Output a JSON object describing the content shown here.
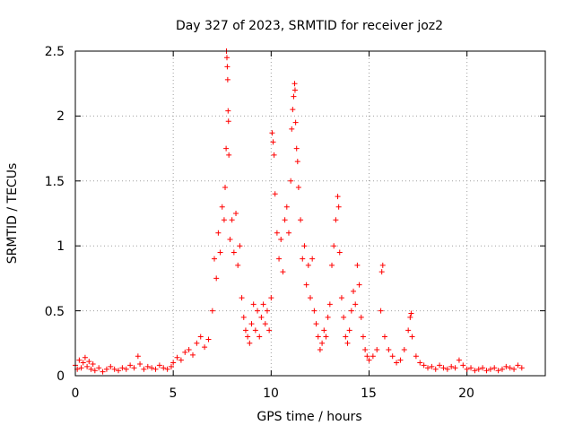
{
  "chart_data": {
    "type": "scatter",
    "title": "Day 327 of 2023, SRMTID for receiver joz2",
    "xlabel": "GPS time / hours",
    "ylabel": "SRMTID / TECUs",
    "xlim": [
      0,
      24
    ],
    "ylim": [
      0,
      2.5
    ],
    "x_ticks": [
      0,
      5,
      10,
      15,
      20
    ],
    "y_ticks": [
      0,
      0.5,
      1,
      1.5,
      2,
      2.5
    ],
    "x_tick_labels": [
      "0",
      "5",
      "10",
      "15",
      "20"
    ],
    "y_tick_labels": [
      "0",
      "0.5",
      "1",
      "1.5",
      "2",
      "2.5"
    ],
    "grid": true,
    "marker": "+",
    "series": [
      {
        "name": "SRMTID",
        "color": "#ff0000",
        "points": [
          [
            0.0,
            0.08
          ],
          [
            0.1,
            0.05
          ],
          [
            0.2,
            0.12
          ],
          [
            0.3,
            0.06
          ],
          [
            0.4,
            0.1
          ],
          [
            0.5,
            0.14
          ],
          [
            0.6,
            0.07
          ],
          [
            0.7,
            0.11
          ],
          [
            0.8,
            0.05
          ],
          [
            0.9,
            0.09
          ],
          [
            1.0,
            0.04
          ],
          [
            1.2,
            0.06
          ],
          [
            1.4,
            0.03
          ],
          [
            1.6,
            0.05
          ],
          [
            1.8,
            0.07
          ],
          [
            2.0,
            0.05
          ],
          [
            2.2,
            0.04
          ],
          [
            2.4,
            0.06
          ],
          [
            2.6,
            0.05
          ],
          [
            2.8,
            0.08
          ],
          [
            3.0,
            0.06
          ],
          [
            3.2,
            0.15
          ],
          [
            3.3,
            0.09
          ],
          [
            3.5,
            0.05
          ],
          [
            3.7,
            0.07
          ],
          [
            3.9,
            0.06
          ],
          [
            4.1,
            0.05
          ],
          [
            4.3,
            0.08
          ],
          [
            4.5,
            0.06
          ],
          [
            4.7,
            0.05
          ],
          [
            4.9,
            0.07
          ],
          [
            5.0,
            0.1
          ],
          [
            5.2,
            0.14
          ],
          [
            5.4,
            0.12
          ],
          [
            5.6,
            0.18
          ],
          [
            5.8,
            0.2
          ],
          [
            6.0,
            0.16
          ],
          [
            6.2,
            0.25
          ],
          [
            6.4,
            0.3
          ],
          [
            6.6,
            0.22
          ],
          [
            6.8,
            0.28
          ],
          [
            7.0,
            0.5
          ],
          [
            7.1,
            0.9
          ],
          [
            7.2,
            0.75
          ],
          [
            7.3,
            1.1
          ],
          [
            7.4,
            0.95
          ],
          [
            7.5,
            1.3
          ],
          [
            7.6,
            1.2
          ],
          [
            7.65,
            1.45
          ],
          [
            7.7,
            1.75
          ],
          [
            7.72,
            2.5
          ],
          [
            7.74,
            2.45
          ],
          [
            7.76,
            2.38
          ],
          [
            7.78,
            2.28
          ],
          [
            7.8,
            2.04
          ],
          [
            7.82,
            1.96
          ],
          [
            7.84,
            1.7
          ],
          [
            7.9,
            1.05
          ],
          [
            8.0,
            1.2
          ],
          [
            8.1,
            0.95
          ],
          [
            8.2,
            1.25
          ],
          [
            8.3,
            0.85
          ],
          [
            8.4,
            1.0
          ],
          [
            8.5,
            0.6
          ],
          [
            8.6,
            0.45
          ],
          [
            8.7,
            0.35
          ],
          [
            8.8,
            0.3
          ],
          [
            8.9,
            0.25
          ],
          [
            9.0,
            0.4
          ],
          [
            9.1,
            0.55
          ],
          [
            9.2,
            0.35
          ],
          [
            9.3,
            0.5
          ],
          [
            9.4,
            0.3
          ],
          [
            9.5,
            0.45
          ],
          [
            9.6,
            0.55
          ],
          [
            9.7,
            0.4
          ],
          [
            9.8,
            0.5
          ],
          [
            9.9,
            0.35
          ],
          [
            10.0,
            0.6
          ],
          [
            10.05,
            1.87
          ],
          [
            10.1,
            1.8
          ],
          [
            10.15,
            1.7
          ],
          [
            10.2,
            1.4
          ],
          [
            10.3,
            1.1
          ],
          [
            10.4,
            0.9
          ],
          [
            10.5,
            1.05
          ],
          [
            10.6,
            0.8
          ],
          [
            10.7,
            1.2
          ],
          [
            10.8,
            1.3
          ],
          [
            10.9,
            1.1
          ],
          [
            11.0,
            1.5
          ],
          [
            11.05,
            1.9
          ],
          [
            11.1,
            2.05
          ],
          [
            11.15,
            2.15
          ],
          [
            11.2,
            2.25
          ],
          [
            11.22,
            2.2
          ],
          [
            11.25,
            1.95
          ],
          [
            11.3,
            1.75
          ],
          [
            11.35,
            1.65
          ],
          [
            11.4,
            1.45
          ],
          [
            11.5,
            1.2
          ],
          [
            11.6,
            0.9
          ],
          [
            11.7,
            1.0
          ],
          [
            11.8,
            0.7
          ],
          [
            11.9,
            0.85
          ],
          [
            12.0,
            0.6
          ],
          [
            12.1,
            0.9
          ],
          [
            12.2,
            0.5
          ],
          [
            12.3,
            0.4
          ],
          [
            12.4,
            0.3
          ],
          [
            12.5,
            0.2
          ],
          [
            12.6,
            0.25
          ],
          [
            12.7,
            0.35
          ],
          [
            12.8,
            0.3
          ],
          [
            12.9,
            0.45
          ],
          [
            13.0,
            0.55
          ],
          [
            13.1,
            0.85
          ],
          [
            13.2,
            1.0
          ],
          [
            13.3,
            1.2
          ],
          [
            13.4,
            1.38
          ],
          [
            13.45,
            1.3
          ],
          [
            13.5,
            0.95
          ],
          [
            13.6,
            0.6
          ],
          [
            13.7,
            0.45
          ],
          [
            13.8,
            0.3
          ],
          [
            13.9,
            0.25
          ],
          [
            14.0,
            0.35
          ],
          [
            14.1,
            0.5
          ],
          [
            14.2,
            0.65
          ],
          [
            14.3,
            0.55
          ],
          [
            14.4,
            0.85
          ],
          [
            14.5,
            0.7
          ],
          [
            14.6,
            0.45
          ],
          [
            14.7,
            0.3
          ],
          [
            14.8,
            0.2
          ],
          [
            14.9,
            0.15
          ],
          [
            15.0,
            0.12
          ],
          [
            15.2,
            0.15
          ],
          [
            15.4,
            0.2
          ],
          [
            15.6,
            0.5
          ],
          [
            15.65,
            0.8
          ],
          [
            15.7,
            0.85
          ],
          [
            15.8,
            0.3
          ],
          [
            16.0,
            0.2
          ],
          [
            16.2,
            0.15
          ],
          [
            16.4,
            0.1
          ],
          [
            16.6,
            0.12
          ],
          [
            16.8,
            0.2
          ],
          [
            17.0,
            0.35
          ],
          [
            17.1,
            0.45
          ],
          [
            17.15,
            0.48
          ],
          [
            17.2,
            0.3
          ],
          [
            17.4,
            0.15
          ],
          [
            17.6,
            0.1
          ],
          [
            17.8,
            0.08
          ],
          [
            18.0,
            0.06
          ],
          [
            18.2,
            0.07
          ],
          [
            18.4,
            0.05
          ],
          [
            18.6,
            0.08
          ],
          [
            18.8,
            0.06
          ],
          [
            19.0,
            0.05
          ],
          [
            19.2,
            0.07
          ],
          [
            19.4,
            0.06
          ],
          [
            19.6,
            0.12
          ],
          [
            19.8,
            0.08
          ],
          [
            20.0,
            0.05
          ],
          [
            20.2,
            0.06
          ],
          [
            20.4,
            0.04
          ],
          [
            20.6,
            0.05
          ],
          [
            20.8,
            0.06
          ],
          [
            21.0,
            0.04
          ],
          [
            21.2,
            0.05
          ],
          [
            21.4,
            0.06
          ],
          [
            21.6,
            0.04
          ],
          [
            21.8,
            0.05
          ],
          [
            22.0,
            0.07
          ],
          [
            22.2,
            0.06
          ],
          [
            22.4,
            0.05
          ],
          [
            22.6,
            0.08
          ],
          [
            22.8,
            0.06
          ]
        ]
      }
    ]
  }
}
